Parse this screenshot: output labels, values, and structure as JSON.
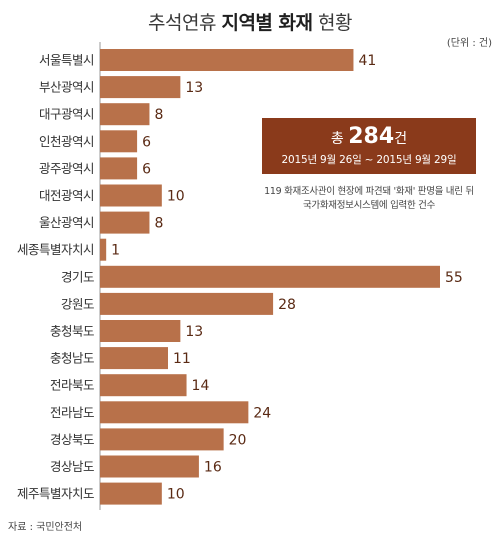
{
  "header": {
    "title_prefix": "추석연휴",
    "title_strong": "지역별 화재",
    "title_suffix": "현황",
    "unit": "(단위 : 건)"
  },
  "summary": {
    "prefix": "총",
    "total": "284",
    "suffix": "건",
    "period": "2015년 9월 26일 ~ 2015년 9월 29일",
    "note_line1": "119 화재조사관이 현장에 파견돼 '화재' 판명을 내린 뒤",
    "note_line2": "국가화재정보시스템에 입력한 건수"
  },
  "source": "자료 : 국민안전처",
  "colors": {
    "bar": "#b8714a",
    "box": "#8a3a1b",
    "axis": "#999999"
  },
  "chart_data": {
    "type": "bar",
    "orientation": "horizontal",
    "title": "추석연휴 지역별 화재 현황",
    "unit": "건",
    "categories": [
      "서울특별시",
      "부산광역시",
      "대구광역시",
      "인천광역시",
      "광주광역시",
      "대전광역시",
      "울산광역시",
      "세종특별자치시",
      "경기도",
      "강원도",
      "충청북도",
      "충청남도",
      "전라북도",
      "전라남도",
      "경상북도",
      "경상남도",
      "제주특별자치도"
    ],
    "values": [
      41,
      13,
      8,
      6,
      6,
      10,
      8,
      1,
      55,
      28,
      13,
      11,
      14,
      24,
      20,
      16,
      10
    ],
    "xlim": [
      0,
      55
    ],
    "grid": false,
    "legend": "none"
  }
}
